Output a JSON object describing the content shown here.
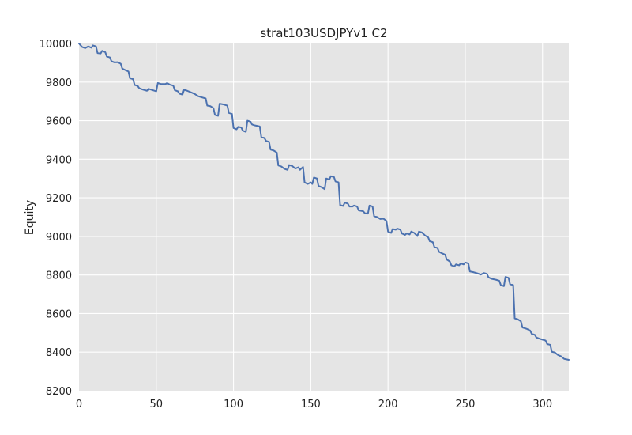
{
  "chart_data": {
    "type": "line",
    "title": "strat103USDJPYv1 C2",
    "xlabel": "",
    "ylabel": "Equity",
    "xlim": [
      0,
      317
    ],
    "ylim": [
      8200,
      10000
    ],
    "xticks": [
      0,
      50,
      100,
      150,
      200,
      250,
      300
    ],
    "yticks": [
      8200,
      8400,
      8600,
      8800,
      9000,
      9200,
      9400,
      9600,
      9800,
      10000
    ],
    "grid": true,
    "colors": {
      "series": "#4c72b0",
      "plot_background": "#e5e5e5",
      "grid": "#ffffff"
    },
    "series": [
      {
        "name": "",
        "points": [
          [
            0,
            10000
          ],
          [
            2,
            9982
          ],
          [
            4,
            9976
          ],
          [
            6,
            9985
          ],
          [
            8,
            9978
          ],
          [
            9,
            9990
          ],
          [
            11,
            9985
          ],
          [
            12,
            9950
          ],
          [
            14,
            9948
          ],
          [
            15,
            9962
          ],
          [
            17,
            9955
          ],
          [
            18,
            9932
          ],
          [
            20,
            9928
          ],
          [
            21,
            9908
          ],
          [
            23,
            9902
          ],
          [
            25,
            9903
          ],
          [
            27,
            9895
          ],
          [
            28,
            9870
          ],
          [
            30,
            9862
          ],
          [
            32,
            9855
          ],
          [
            33,
            9820
          ],
          [
            35,
            9815
          ],
          [
            36,
            9785
          ],
          [
            38,
            9780
          ],
          [
            39,
            9768
          ],
          [
            41,
            9762
          ],
          [
            44,
            9755
          ],
          [
            45,
            9765
          ],
          [
            47,
            9760
          ],
          [
            50,
            9752
          ],
          [
            51,
            9795
          ],
          [
            53,
            9790
          ],
          [
            56,
            9790
          ],
          [
            57,
            9795
          ],
          [
            59,
            9786
          ],
          [
            61,
            9782
          ],
          [
            62,
            9758
          ],
          [
            64,
            9752
          ],
          [
            65,
            9740
          ],
          [
            67,
            9735
          ],
          [
            68,
            9760
          ],
          [
            70,
            9755
          ],
          [
            73,
            9745
          ],
          [
            75,
            9738
          ],
          [
            77,
            9727
          ],
          [
            79,
            9722
          ],
          [
            82,
            9715
          ],
          [
            83,
            9678
          ],
          [
            85,
            9675
          ],
          [
            87,
            9665
          ],
          [
            88,
            9630
          ],
          [
            90,
            9625
          ],
          [
            91,
            9688
          ],
          [
            93,
            9685
          ],
          [
            96,
            9678
          ],
          [
            97,
            9640
          ],
          [
            99,
            9635
          ],
          [
            100,
            9562
          ],
          [
            102,
            9555
          ],
          [
            103,
            9568
          ],
          [
            105,
            9565
          ],
          [
            106,
            9548
          ],
          [
            108,
            9542
          ],
          [
            109,
            9600
          ],
          [
            111,
            9595
          ],
          [
            112,
            9580
          ],
          [
            114,
            9575
          ],
          [
            117,
            9570
          ],
          [
            118,
            9515
          ],
          [
            120,
            9510
          ],
          [
            121,
            9495
          ],
          [
            123,
            9490
          ],
          [
            124,
            9450
          ],
          [
            126,
            9445
          ],
          [
            128,
            9435
          ],
          [
            129,
            9368
          ],
          [
            131,
            9362
          ],
          [
            133,
            9350
          ],
          [
            135,
            9345
          ],
          [
            136,
            9370
          ],
          [
            138,
            9365
          ],
          [
            140,
            9352
          ],
          [
            142,
            9358
          ],
          [
            143,
            9345
          ],
          [
            145,
            9360
          ],
          [
            146,
            9280
          ],
          [
            148,
            9272
          ],
          [
            150,
            9280
          ],
          [
            151,
            9272
          ],
          [
            152,
            9305
          ],
          [
            154,
            9300
          ],
          [
            155,
            9262
          ],
          [
            157,
            9255
          ],
          [
            159,
            9245
          ],
          [
            160,
            9300
          ],
          [
            162,
            9295
          ],
          [
            163,
            9312
          ],
          [
            165,
            9308
          ],
          [
            166,
            9285
          ],
          [
            168,
            9280
          ],
          [
            169,
            9162
          ],
          [
            171,
            9158
          ],
          [
            172,
            9175
          ],
          [
            174,
            9170
          ],
          [
            175,
            9155
          ],
          [
            177,
            9155
          ],
          [
            178,
            9160
          ],
          [
            180,
            9155
          ],
          [
            181,
            9135
          ],
          [
            184,
            9130
          ],
          [
            185,
            9120
          ],
          [
            187,
            9118
          ],
          [
            188,
            9160
          ],
          [
            190,
            9155
          ],
          [
            191,
            9105
          ],
          [
            193,
            9100
          ],
          [
            195,
            9090
          ],
          [
            197,
            9092
          ],
          [
            199,
            9080
          ],
          [
            200,
            9025
          ],
          [
            202,
            9018
          ],
          [
            203,
            9038
          ],
          [
            205,
            9035
          ],
          [
            206,
            9040
          ],
          [
            208,
            9035
          ],
          [
            209,
            9015
          ],
          [
            211,
            9008
          ],
          [
            212,
            9015
          ],
          [
            214,
            9010
          ],
          [
            215,
            9025
          ],
          [
            217,
            9018
          ],
          [
            219,
            9002
          ],
          [
            220,
            9025
          ],
          [
            222,
            9020
          ],
          [
            224,
            9005
          ],
          [
            226,
            8995
          ],
          [
            227,
            8975
          ],
          [
            229,
            8970
          ],
          [
            230,
            8945
          ],
          [
            232,
            8940
          ],
          [
            233,
            8920
          ],
          [
            235,
            8912
          ],
          [
            237,
            8905
          ],
          [
            238,
            8880
          ],
          [
            240,
            8870
          ],
          [
            241,
            8850
          ],
          [
            243,
            8845
          ],
          [
            244,
            8855
          ],
          [
            246,
            8850
          ],
          [
            247,
            8860
          ],
          [
            249,
            8855
          ],
          [
            250,
            8865
          ],
          [
            252,
            8860
          ],
          [
            253,
            8818
          ],
          [
            255,
            8815
          ],
          [
            258,
            8808
          ],
          [
            260,
            8802
          ],
          [
            262,
            8810
          ],
          [
            264,
            8806
          ],
          [
            265,
            8788
          ],
          [
            267,
            8780
          ],
          [
            270,
            8775
          ],
          [
            272,
            8770
          ],
          [
            273,
            8748
          ],
          [
            275,
            8742
          ],
          [
            276,
            8790
          ],
          [
            278,
            8785
          ],
          [
            279,
            8752
          ],
          [
            281,
            8748
          ],
          [
            282,
            8575
          ],
          [
            284,
            8570
          ],
          [
            286,
            8560
          ],
          [
            287,
            8528
          ],
          [
            290,
            8520
          ],
          [
            292,
            8512
          ],
          [
            293,
            8495
          ],
          [
            295,
            8490
          ],
          [
            296,
            8476
          ],
          [
            298,
            8470
          ],
          [
            300,
            8465
          ],
          [
            302,
            8460
          ],
          [
            303,
            8442
          ],
          [
            305,
            8438
          ],
          [
            306,
            8402
          ],
          [
            308,
            8398
          ],
          [
            310,
            8385
          ],
          [
            312,
            8378
          ],
          [
            314,
            8365
          ],
          [
            317,
            8360
          ]
        ]
      }
    ]
  }
}
